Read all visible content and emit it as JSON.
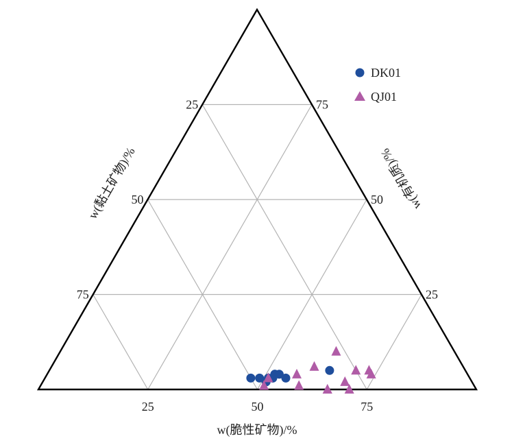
{
  "chart_data": {
    "type": "scatter",
    "subtype": "ternary",
    "axes": {
      "bottom": {
        "label": "w(脆性矿物)/%",
        "ticks": [
          "25",
          "50",
          "75"
        ]
      },
      "left": {
        "label": "w(黏土矿物)/%",
        "ticks": [
          "25",
          "50",
          "75"
        ]
      },
      "right": {
        "label": "w(有机质)/%",
        "ticks": [
          "75",
          "50",
          "25"
        ]
      }
    },
    "grid": true,
    "legend_position": "top-right",
    "series": [
      {
        "name": "DK01",
        "marker": "circle",
        "color": "#1f4e9c",
        "points": [
          {
            "brittle": 47,
            "clay": 50,
            "organic": 3
          },
          {
            "brittle": 49,
            "clay": 48,
            "organic": 3
          },
          {
            "brittle": 51,
            "clay": 47,
            "organic": 2
          },
          {
            "brittle": 51,
            "clay": 46,
            "organic": 3
          },
          {
            "brittle": 52,
            "clay": 45,
            "organic": 3
          },
          {
            "brittle": 52,
            "clay": 44,
            "organic": 4
          },
          {
            "brittle": 52,
            "clay": 45,
            "organic": 3
          },
          {
            "brittle": 52,
            "clay": 44,
            "organic": 4
          },
          {
            "brittle": 53,
            "clay": 43,
            "organic": 4
          },
          {
            "brittle": 55,
            "clay": 42,
            "organic": 3
          },
          {
            "brittle": 64,
            "clay": 31,
            "organic": 5
          }
        ]
      },
      {
        "name": "QJ01",
        "marker": "triangle",
        "color": "#b05ca6",
        "points": [
          {
            "brittle": 51,
            "clay": 48,
            "organic": 1
          },
          {
            "brittle": 51,
            "clay": 46,
            "organic": 3
          },
          {
            "brittle": 57,
            "clay": 39,
            "organic": 4
          },
          {
            "brittle": 59,
            "clay": 40,
            "organic": 1
          },
          {
            "brittle": 60,
            "clay": 34,
            "organic": 6
          },
          {
            "brittle": 63,
            "clay": 27,
            "organic": 10
          },
          {
            "brittle": 66,
            "clay": 34,
            "organic": 0
          },
          {
            "brittle": 66,
            "clay": 34,
            "organic": 0
          },
          {
            "brittle": 69,
            "clay": 29,
            "organic": 2
          },
          {
            "brittle": 70,
            "clay": 25,
            "organic": 5
          },
          {
            "brittle": 71,
            "clay": 29,
            "organic": 0
          },
          {
            "brittle": 73,
            "clay": 22,
            "organic": 5
          },
          {
            "brittle": 74,
            "clay": 22,
            "organic": 4
          }
        ]
      }
    ]
  }
}
